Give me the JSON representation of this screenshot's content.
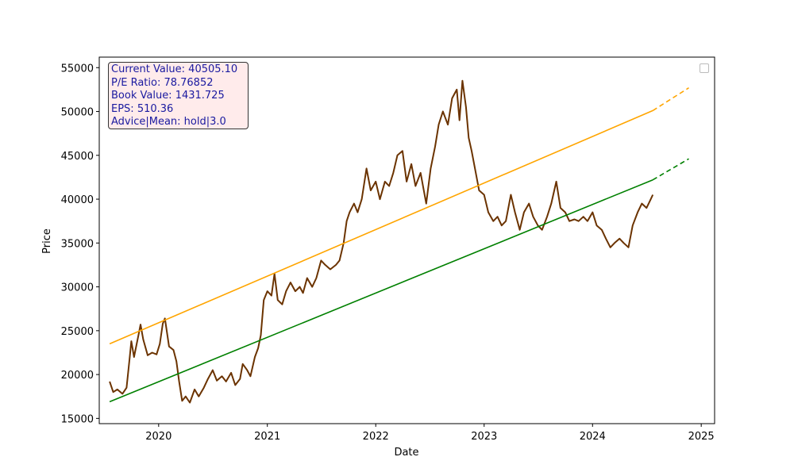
{
  "chart_data": {
    "type": "line",
    "xlabel": "Date",
    "ylabel": "Price",
    "x_range": [
      "2019-06-15",
      "2025-02-15"
    ],
    "ylim": [
      14400,
      56200
    ],
    "x_ticks": [
      "2020",
      "2021",
      "2022",
      "2023",
      "2024",
      "2025"
    ],
    "y_ticks": [
      15000,
      20000,
      25000,
      30000,
      35000,
      40000,
      45000,
      50000,
      55000
    ],
    "grid": false,
    "legend": "top-right",
    "info_box": [
      "Current Value: 40505.10",
      "P/E Ratio: 78.76852",
      "Book Value: 1431.725",
      "EPS: 510.36",
      "Advice|Mean: hold|3.0"
    ],
    "colors": {
      "price": "#6b3300",
      "upper": "#ffa500",
      "lower": "#008000",
      "info_text": "#1a1aa0"
    },
    "series": [
      {
        "key": "price",
        "points": [
          [
            "2019-07-20",
            19200
          ],
          [
            "2019-08-01",
            18000
          ],
          [
            "2019-08-15",
            18300
          ],
          [
            "2019-09-01",
            17800
          ],
          [
            "2019-09-15",
            18500
          ],
          [
            "2019-09-25",
            21800
          ],
          [
            "2019-10-01",
            23800
          ],
          [
            "2019-10-10",
            22000
          ],
          [
            "2019-10-25",
            24500
          ],
          [
            "2019-11-01",
            25700
          ],
          [
            "2019-11-10",
            24000
          ],
          [
            "2019-11-25",
            22200
          ],
          [
            "2019-12-10",
            22500
          ],
          [
            "2019-12-25",
            22300
          ],
          [
            "2020-01-05",
            23500
          ],
          [
            "2020-01-15",
            25800
          ],
          [
            "2020-01-22",
            26400
          ],
          [
            "2020-02-05",
            23200
          ],
          [
            "2020-02-20",
            22800
          ],
          [
            "2020-03-01",
            21500
          ],
          [
            "2020-03-10",
            19200
          ],
          [
            "2020-03-20",
            17000
          ],
          [
            "2020-04-01",
            17500
          ],
          [
            "2020-04-15",
            16800
          ],
          [
            "2020-05-01",
            18300
          ],
          [
            "2020-05-15",
            17500
          ],
          [
            "2020-06-01",
            18500
          ],
          [
            "2020-06-15",
            19500
          ],
          [
            "2020-07-01",
            20500
          ],
          [
            "2020-07-15",
            19300
          ],
          [
            "2020-08-01",
            19800
          ],
          [
            "2020-08-15",
            19200
          ],
          [
            "2020-09-01",
            20200
          ],
          [
            "2020-09-15",
            18800
          ],
          [
            "2020-10-01",
            19500
          ],
          [
            "2020-10-10",
            21200
          ],
          [
            "2020-10-25",
            20500
          ],
          [
            "2020-11-05",
            19800
          ],
          [
            "2020-11-20",
            22000
          ],
          [
            "2020-12-01",
            23000
          ],
          [
            "2020-12-10",
            24500
          ],
          [
            "2020-12-20",
            28500
          ],
          [
            "2021-01-01",
            29500
          ],
          [
            "2021-01-15",
            29000
          ],
          [
            "2021-01-25",
            31500
          ],
          [
            "2021-02-05",
            28500
          ],
          [
            "2021-02-20",
            28000
          ],
          [
            "2021-03-05",
            29500
          ],
          [
            "2021-03-20",
            30500
          ],
          [
            "2021-04-05",
            29500
          ],
          [
            "2021-04-20",
            30000
          ],
          [
            "2021-05-01",
            29300
          ],
          [
            "2021-05-15",
            31000
          ],
          [
            "2021-06-01",
            30000
          ],
          [
            "2021-06-15",
            31000
          ],
          [
            "2021-07-01",
            33000
          ],
          [
            "2021-07-15",
            32500
          ],
          [
            "2021-08-01",
            32000
          ],
          [
            "2021-08-20",
            32500
          ],
          [
            "2021-09-01",
            33000
          ],
          [
            "2021-09-15",
            35000
          ],
          [
            "2021-09-25",
            37500
          ],
          [
            "2021-10-05",
            38500
          ],
          [
            "2021-10-20",
            39500
          ],
          [
            "2021-11-01",
            38500
          ],
          [
            "2021-11-15",
            40000
          ],
          [
            "2021-12-01",
            43500
          ],
          [
            "2021-12-15",
            41000
          ],
          [
            "2022-01-01",
            42000
          ],
          [
            "2022-01-15",
            40000
          ],
          [
            "2022-02-01",
            42000
          ],
          [
            "2022-02-15",
            41500
          ],
          [
            "2022-03-01",
            43000
          ],
          [
            "2022-03-15",
            45000
          ],
          [
            "2022-04-01",
            45500
          ],
          [
            "2022-04-15",
            42000
          ],
          [
            "2022-05-01",
            44000
          ],
          [
            "2022-05-15",
            41500
          ],
          [
            "2022-06-01",
            43000
          ],
          [
            "2022-06-20",
            39500
          ],
          [
            "2022-07-05",
            43500
          ],
          [
            "2022-07-20",
            46000
          ],
          [
            "2022-08-01",
            48500
          ],
          [
            "2022-08-15",
            50000
          ],
          [
            "2022-09-01",
            48500
          ],
          [
            "2022-09-15",
            51500
          ],
          [
            "2022-10-01",
            52500
          ],
          [
            "2022-10-10",
            49000
          ],
          [
            "2022-10-20",
            53500
          ],
          [
            "2022-11-01",
            50500
          ],
          [
            "2022-11-10",
            47000
          ],
          [
            "2022-11-20",
            45500
          ],
          [
            "2022-12-01",
            43500
          ],
          [
            "2022-12-15",
            41000
          ],
          [
            "2023-01-01",
            40500
          ],
          [
            "2023-01-15",
            38500
          ],
          [
            "2023-02-01",
            37500
          ],
          [
            "2023-02-15",
            38000
          ],
          [
            "2023-03-01",
            37000
          ],
          [
            "2023-03-15",
            37500
          ],
          [
            "2023-04-01",
            40500
          ],
          [
            "2023-04-15",
            38500
          ],
          [
            "2023-05-01",
            36500
          ],
          [
            "2023-05-15",
            38500
          ],
          [
            "2023-06-01",
            39500
          ],
          [
            "2023-06-15",
            38000
          ],
          [
            "2023-07-01",
            37000
          ],
          [
            "2023-07-15",
            36500
          ],
          [
            "2023-08-01",
            38000
          ],
          [
            "2023-08-15",
            39500
          ],
          [
            "2023-09-01",
            42000
          ],
          [
            "2023-09-15",
            39000
          ],
          [
            "2023-10-01",
            38500
          ],
          [
            "2023-10-15",
            37500
          ],
          [
            "2023-11-01",
            37700
          ],
          [
            "2023-11-15",
            37500
          ],
          [
            "2023-12-01",
            38000
          ],
          [
            "2023-12-15",
            37500
          ],
          [
            "2024-01-01",
            38500
          ],
          [
            "2024-01-15",
            37000
          ],
          [
            "2024-02-01",
            36500
          ],
          [
            "2024-02-15",
            35500
          ],
          [
            "2024-03-01",
            34500
          ],
          [
            "2024-03-15",
            35000
          ],
          [
            "2024-04-01",
            35500
          ],
          [
            "2024-04-15",
            35000
          ],
          [
            "2024-05-01",
            34500
          ],
          [
            "2024-05-15",
            37000
          ],
          [
            "2024-06-01",
            38500
          ],
          [
            "2024-06-15",
            39500
          ],
          [
            "2024-07-01",
            39000
          ],
          [
            "2024-07-15",
            40000
          ],
          [
            "2024-07-22",
            40505
          ]
        ]
      },
      {
        "key": "upper",
        "points": [
          [
            "2019-07-20",
            23500
          ],
          [
            "2024-07-22",
            50100
          ]
        ],
        "projection": [
          [
            "2024-07-22",
            50100
          ],
          [
            "2024-11-20",
            52700
          ]
        ]
      },
      {
        "key": "lower",
        "points": [
          [
            "2019-07-20",
            16900
          ],
          [
            "2024-07-22",
            42200
          ]
        ],
        "projection": [
          [
            "2024-07-22",
            42200
          ],
          [
            "2024-11-20",
            44600
          ]
        ]
      }
    ]
  }
}
